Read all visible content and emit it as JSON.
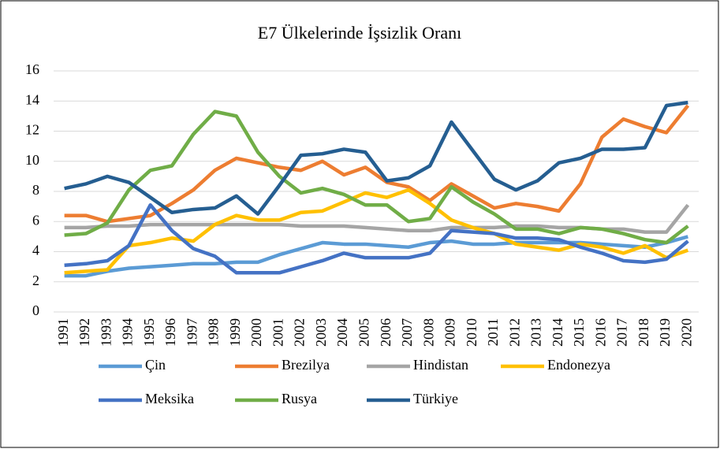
{
  "chart_data": {
    "type": "line",
    "title": "E7 Ülkelerinde İşsizlik Oranı",
    "categories": [
      "1991",
      "1992",
      "1993",
      "1994",
      "1995",
      "1996",
      "1997",
      "1998",
      "1999",
      "2000",
      "2001",
      "2002",
      "2003",
      "2004",
      "2005",
      "2006",
      "2007",
      "2008",
      "2009",
      "2010",
      "2011",
      "2012",
      "2013",
      "2014",
      "2015",
      "2016",
      "2017",
      "2018",
      "2019",
      "2020"
    ],
    "ylim": [
      0,
      16
    ],
    "yticks": [
      0,
      2,
      4,
      6,
      8,
      10,
      12,
      14,
      16
    ],
    "grid": true,
    "series": [
      {
        "name": "Çin",
        "color": "#5b9bd5",
        "values": [
          2.4,
          2.4,
          2.7,
          2.9,
          3.0,
          3.1,
          3.2,
          3.2,
          3.3,
          3.3,
          3.8,
          4.2,
          4.6,
          4.5,
          4.5,
          4.4,
          4.3,
          4.6,
          4.7,
          4.5,
          4.5,
          4.6,
          4.6,
          4.6,
          4.6,
          4.5,
          4.4,
          4.3,
          4.6,
          5.0
        ]
      },
      {
        "name": "Brezilya",
        "color": "#ed7d31",
        "values": [
          6.4,
          6.4,
          6.0,
          6.2,
          6.4,
          7.2,
          8.1,
          9.4,
          10.2,
          9.9,
          9.6,
          9.4,
          10.0,
          9.1,
          9.6,
          8.6,
          8.3,
          7.4,
          8.5,
          7.7,
          6.9,
          7.2,
          7.0,
          6.7,
          8.5,
          11.6,
          12.8,
          12.3,
          11.9,
          13.7
        ]
      },
      {
        "name": "Hindistan",
        "color": "#a5a5a5",
        "values": [
          5.6,
          5.6,
          5.7,
          5.7,
          5.8,
          5.8,
          5.8,
          5.8,
          5.8,
          5.8,
          5.8,
          5.7,
          5.7,
          5.7,
          5.6,
          5.5,
          5.4,
          5.4,
          5.6,
          5.6,
          5.6,
          5.7,
          5.7,
          5.6,
          5.6,
          5.5,
          5.5,
          5.3,
          5.3,
          7.1
        ]
      },
      {
        "name": "Endonezya",
        "color": "#ffc000",
        "values": [
          2.6,
          2.7,
          2.8,
          4.4,
          4.6,
          4.9,
          4.7,
          5.8,
          6.4,
          6.1,
          6.1,
          6.6,
          6.7,
          7.3,
          7.9,
          7.6,
          8.1,
          7.2,
          6.1,
          5.6,
          5.2,
          4.5,
          4.3,
          4.1,
          4.5,
          4.3,
          3.9,
          4.4,
          3.6,
          4.1
        ]
      },
      {
        "name": "Meksika",
        "color": "#4472c4",
        "values": [
          3.1,
          3.2,
          3.4,
          4.4,
          7.1,
          5.4,
          4.2,
          3.7,
          2.6,
          2.6,
          2.6,
          3.0,
          3.4,
          3.9,
          3.6,
          3.6,
          3.6,
          3.9,
          5.4,
          5.3,
          5.2,
          4.9,
          4.9,
          4.8,
          4.3,
          3.9,
          3.4,
          3.3,
          3.5,
          4.7
        ]
      },
      {
        "name": "Rusya",
        "color": "#70ad47",
        "values": [
          5.1,
          5.2,
          5.9,
          8.1,
          9.4,
          9.7,
          11.8,
          13.3,
          13.0,
          10.6,
          9.0,
          7.9,
          8.2,
          7.8,
          7.1,
          7.1,
          6.0,
          6.2,
          8.3,
          7.3,
          6.5,
          5.5,
          5.5,
          5.2,
          5.6,
          5.5,
          5.2,
          4.8,
          4.6,
          5.7
        ]
      },
      {
        "name": "Türkiye",
        "color": "#255e91",
        "values": [
          8.2,
          8.5,
          9.0,
          8.6,
          7.6,
          6.6,
          6.8,
          6.9,
          7.7,
          6.5,
          8.4,
          10.4,
          10.5,
          10.8,
          10.6,
          8.7,
          8.9,
          9.7,
          12.6,
          10.7,
          8.8,
          8.1,
          8.7,
          9.9,
          10.2,
          10.8,
          10.8,
          10.9,
          13.7,
          13.9
        ]
      }
    ]
  }
}
